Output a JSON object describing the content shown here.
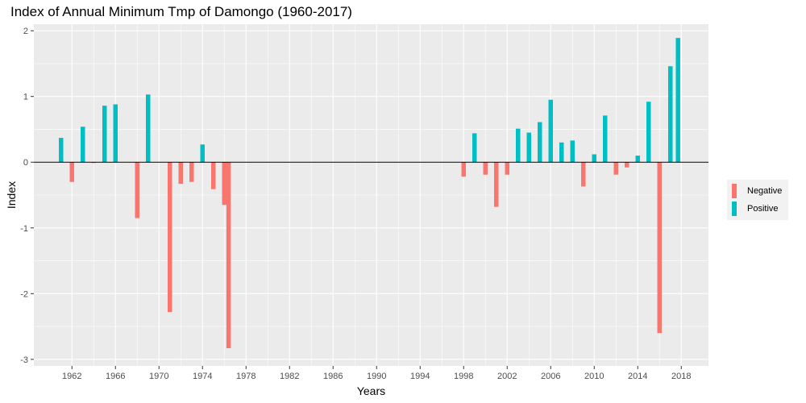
{
  "chart_data": {
    "type": "bar",
    "title": "Index of Annual Minimum Tmp of Damongo (1960-2017)",
    "xlabel": "Years",
    "ylabel": "Index",
    "xlim": [
      1958.5,
      2020.5
    ],
    "ylim": [
      -3.1,
      2.1
    ],
    "xticks": [
      "1962",
      "1966",
      "1970",
      "1974",
      "1978",
      "1982",
      "1986",
      "1990",
      "1994",
      "1998",
      "2002",
      "2006",
      "2010",
      "2014",
      "2018"
    ],
    "yticks": [
      "2",
      "1",
      "0",
      "-1",
      "-2",
      "-3"
    ],
    "grid": true,
    "legend_position": "right",
    "series": [
      {
        "name": "Negative",
        "color": "#f8766d",
        "points": [
          {
            "x": 1962,
            "y": -0.3
          },
          {
            "x": 1964,
            "y": -0.01
          },
          {
            "x": 1968,
            "y": -0.85
          },
          {
            "x": 1971,
            "y": -2.28
          },
          {
            "x": 1972,
            "y": -0.33
          },
          {
            "x": 1973,
            "y": -0.3
          },
          {
            "x": 1975,
            "y": -0.41
          },
          {
            "x": 1976,
            "y": -0.65
          },
          {
            "x": 1976.4,
            "y": -2.83
          },
          {
            "x": 1998,
            "y": -0.22
          },
          {
            "x": 2000,
            "y": -0.19
          },
          {
            "x": 2001,
            "y": -0.68
          },
          {
            "x": 2002,
            "y": -0.19
          },
          {
            "x": 2009,
            "y": -0.37
          },
          {
            "x": 2012,
            "y": -0.19
          },
          {
            "x": 2013,
            "y": -0.08
          },
          {
            "x": 2016,
            "y": -2.6
          }
        ]
      },
      {
        "name": "Positive",
        "color": "#00bfc4",
        "points": [
          {
            "x": 1961,
            "y": 0.37
          },
          {
            "x": 1963,
            "y": 0.54
          },
          {
            "x": 1965,
            "y": 0.86
          },
          {
            "x": 1966,
            "y": 0.88
          },
          {
            "x": 1969,
            "y": 1.03
          },
          {
            "x": 1974,
            "y": 0.27
          },
          {
            "x": 1999,
            "y": 0.44
          },
          {
            "x": 2003,
            "y": 0.51
          },
          {
            "x": 2004,
            "y": 0.45
          },
          {
            "x": 2005,
            "y": 0.61
          },
          {
            "x": 2006,
            "y": 0.95
          },
          {
            "x": 2007,
            "y": 0.3
          },
          {
            "x": 2008,
            "y": 0.33
          },
          {
            "x": 2010,
            "y": 0.12
          },
          {
            "x": 2011,
            "y": 0.71
          },
          {
            "x": 2014,
            "y": 0.1
          },
          {
            "x": 2015,
            "y": 0.92
          },
          {
            "x": 2017,
            "y": 1.46
          },
          {
            "x": 2017.7,
            "y": 1.89
          }
        ]
      }
    ]
  }
}
